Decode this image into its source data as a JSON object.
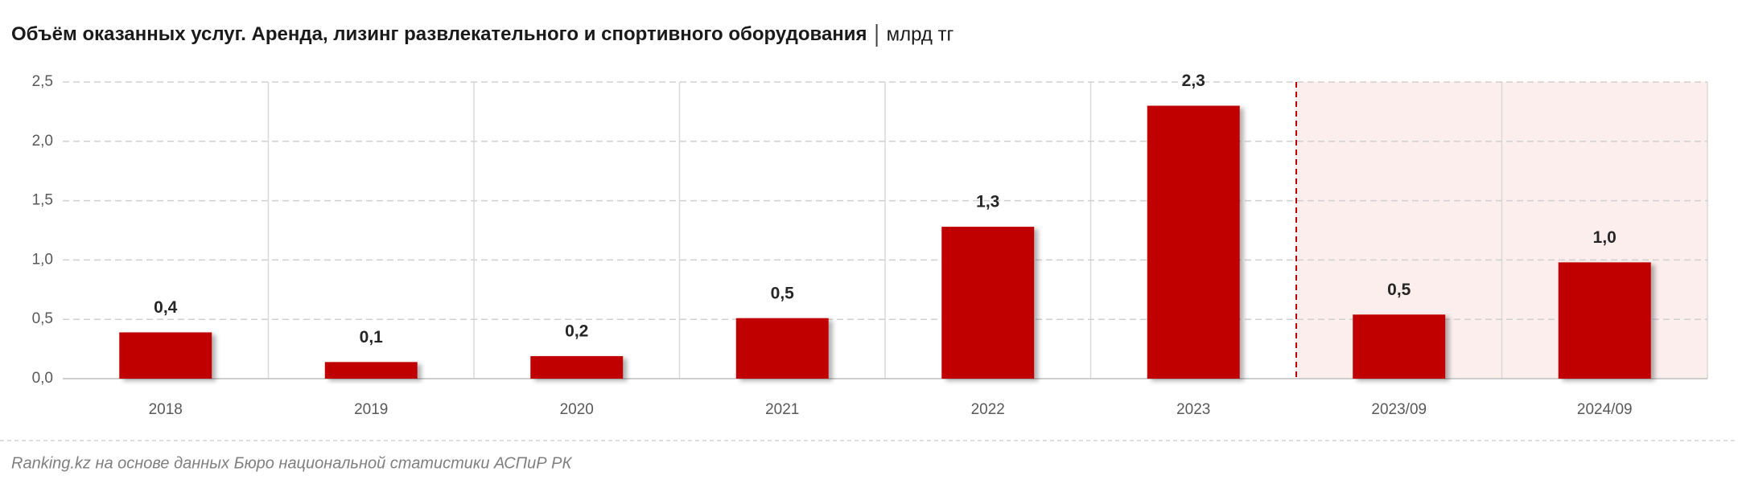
{
  "chart_data": {
    "type": "bar",
    "title": "Объём оказанных услуг. Аренда, лизинг развлекательного и спортивного оборудования",
    "unit": "млрд тг",
    "source": "Ranking.kz на основе данных Бюро национальной статистики АСПиР РК",
    "categories": [
      "2018",
      "2019",
      "2020",
      "2021",
      "2022",
      "2023",
      "2023/09",
      "2024/09"
    ],
    "values": [
      0.39,
      0.14,
      0.19,
      0.51,
      1.28,
      2.3,
      0.54,
      0.98
    ],
    "value_labels": [
      "0,4",
      "0,1",
      "0,2",
      "0,5",
      "1,3",
      "2,3",
      "0,5",
      "1,0"
    ],
    "color": "#c00000",
    "ylim": [
      0,
      2.5
    ],
    "yticks": [
      {
        "value": 0,
        "label": "0,0"
      },
      {
        "value": 0.5,
        "label": "0,5"
      },
      {
        "value": 1,
        "label": "1,0"
      },
      {
        "value": 1.5,
        "label": "1,5"
      },
      {
        "value": 2,
        "label": "2,0"
      },
      {
        "value": 2.5,
        "label": "2,5"
      }
    ],
    "grid": true,
    "highlight": {
      "from": 6,
      "color": "#fdeeee",
      "line_color": "#c00000"
    }
  }
}
